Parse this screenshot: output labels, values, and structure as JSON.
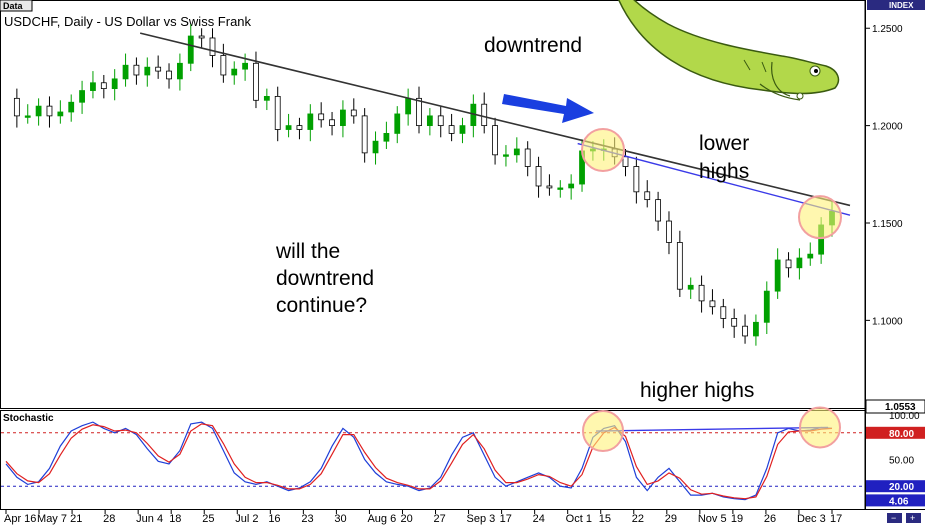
{
  "window": {
    "tab_label": "Data",
    "chart_label": "USDCHF, Daily - US Dollar vs Swiss Frank",
    "index_label": "INDEX"
  },
  "annotations": {
    "downtrend": "downtrend",
    "lower_highs": [
      "lower",
      "highs"
    ],
    "question": [
      "will the",
      "downtrend",
      "continue?"
    ],
    "higher_highs": "higher highs"
  },
  "colors": {
    "bull_candle": "#00a000",
    "bear_candle": "#000000",
    "trendline": "#333333",
    "highs_line": "#3a3ae8",
    "arrow": "#1a3fe0",
    "circle_stroke": "#f2a0a0",
    "circle_fill": "#fff27a",
    "stoch_k": "#1f3fd8",
    "stoch_d": "#e02020",
    "level_80": "#d02020",
    "level_20": "#2020c0",
    "mascot": "#b2d84a"
  },
  "decoration": {
    "mascot": "green-fish-mascot"
  },
  "controls": {
    "zoom_icon": "zoom-icon"
  },
  "chart_data": [
    {
      "type": "candlestick",
      "title": "USDCHF, Daily - US Dollar vs Swiss Frank",
      "ylim": [
        1.055,
        1.2645
      ],
      "y_ticks": [
        "1.2500",
        "1.2000",
        "1.1500",
        "1.1000"
      ],
      "current_price": "1.0553",
      "x_ticks": [
        "Apr 16",
        "May 7",
        "21",
        "28",
        "Jun 4",
        "18",
        "25",
        "Jul 2",
        "16",
        "23",
        "30",
        "Aug 6",
        "20",
        "27",
        "Sep 3",
        "17",
        "24",
        "Oct 1",
        "15",
        "22",
        "29",
        "Nov 5",
        "19",
        "26",
        "Dec 3",
        "17"
      ],
      "close_path": [
        1.214,
        1.205,
        1.205,
        1.21,
        1.205,
        1.207,
        1.212,
        1.218,
        1.222,
        1.219,
        1.224,
        1.231,
        1.226,
        1.23,
        1.228,
        1.224,
        1.232,
        1.246,
        1.245,
        1.236,
        1.226,
        1.229,
        1.232,
        1.213,
        1.215,
        1.198,
        1.2,
        1.198,
        1.206,
        1.203,
        1.2,
        1.208,
        1.205,
        1.186,
        1.192,
        1.196,
        1.206,
        1.214,
        1.2,
        1.205,
        1.2,
        1.196,
        1.2,
        1.211,
        1.2,
        1.185,
        1.185,
        1.188,
        1.179,
        1.169,
        1.168,
        1.168,
        1.17,
        1.187,
        1.188,
        1.188,
        1.184,
        1.179,
        1.166,
        1.162,
        1.151,
        1.14,
        1.116,
        1.118,
        1.11,
        1.107,
        1.101,
        1.097,
        1.092,
        1.099,
        1.115,
        1.131,
        1.127,
        1.132,
        1.134,
        1.149,
        1.156
      ],
      "trendlines": [
        {
          "x": [
            "Jun 4",
            "Dec 17"
          ],
          "y": [
            1.2475,
            1.159
          ]
        },
        {
          "x": [
            "Oct 1",
            "Dec 17"
          ],
          "y": [
            1.1908,
            1.154
          ]
        }
      ],
      "highlighted_highs": [
        {
          "x": "Oct 1",
          "y": 1.1875
        },
        {
          "x": "Dec 17",
          "y": 1.153
        }
      ]
    },
    {
      "type": "line",
      "title": "Stochastic",
      "ylim": [
        0,
        100
      ],
      "y_ticks": [
        "100.00",
        "80.00",
        "50.00",
        "20.00",
        "4.06"
      ],
      "levels": [
        80,
        20
      ],
      "series": [
        {
          "values": [
            45,
            30,
            22,
            25,
            40,
            65,
            82,
            88,
            92,
            85,
            80,
            85,
            78,
            62,
            48,
            45,
            60,
            90,
            92,
            85,
            60,
            35,
            25,
            22,
            25,
            20,
            15,
            18,
            25,
            40,
            65,
            85,
            75,
            50,
            35,
            25,
            22,
            20,
            15,
            18,
            30,
            55,
            75,
            80,
            55,
            30,
            20,
            25,
            30,
            35,
            30,
            20,
            18,
            40,
            75,
            85,
            88,
            70,
            30,
            15,
            30,
            40,
            25,
            10,
            10,
            12,
            8,
            6,
            5,
            10,
            40,
            80,
            85,
            82,
            83,
            86,
            85
          ]
        },
        {
          "values": [
            48,
            34,
            26,
            24,
            34,
            55,
            74,
            84,
            89,
            87,
            82,
            83,
            80,
            68,
            54,
            47,
            56,
            82,
            90,
            88,
            68,
            45,
            30,
            24,
            24,
            21,
            17,
            17,
            22,
            34,
            56,
            78,
            78,
            58,
            41,
            29,
            24,
            21,
            17,
            17,
            26,
            46,
            67,
            78,
            62,
            38,
            24,
            24,
            28,
            33,
            31,
            24,
            20,
            33,
            64,
            80,
            86,
            76,
            42,
            22,
            26,
            35,
            29,
            16,
            11,
            12,
            9,
            7,
            6,
            8,
            31,
            67,
            81,
            82,
            82,
            84,
            85
          ]
        }
      ],
      "highlighted_highs": [
        {
          "x": "Oct 1",
          "y": 82
        },
        {
          "x": "Dec 17",
          "y": 86
        }
      ]
    }
  ]
}
